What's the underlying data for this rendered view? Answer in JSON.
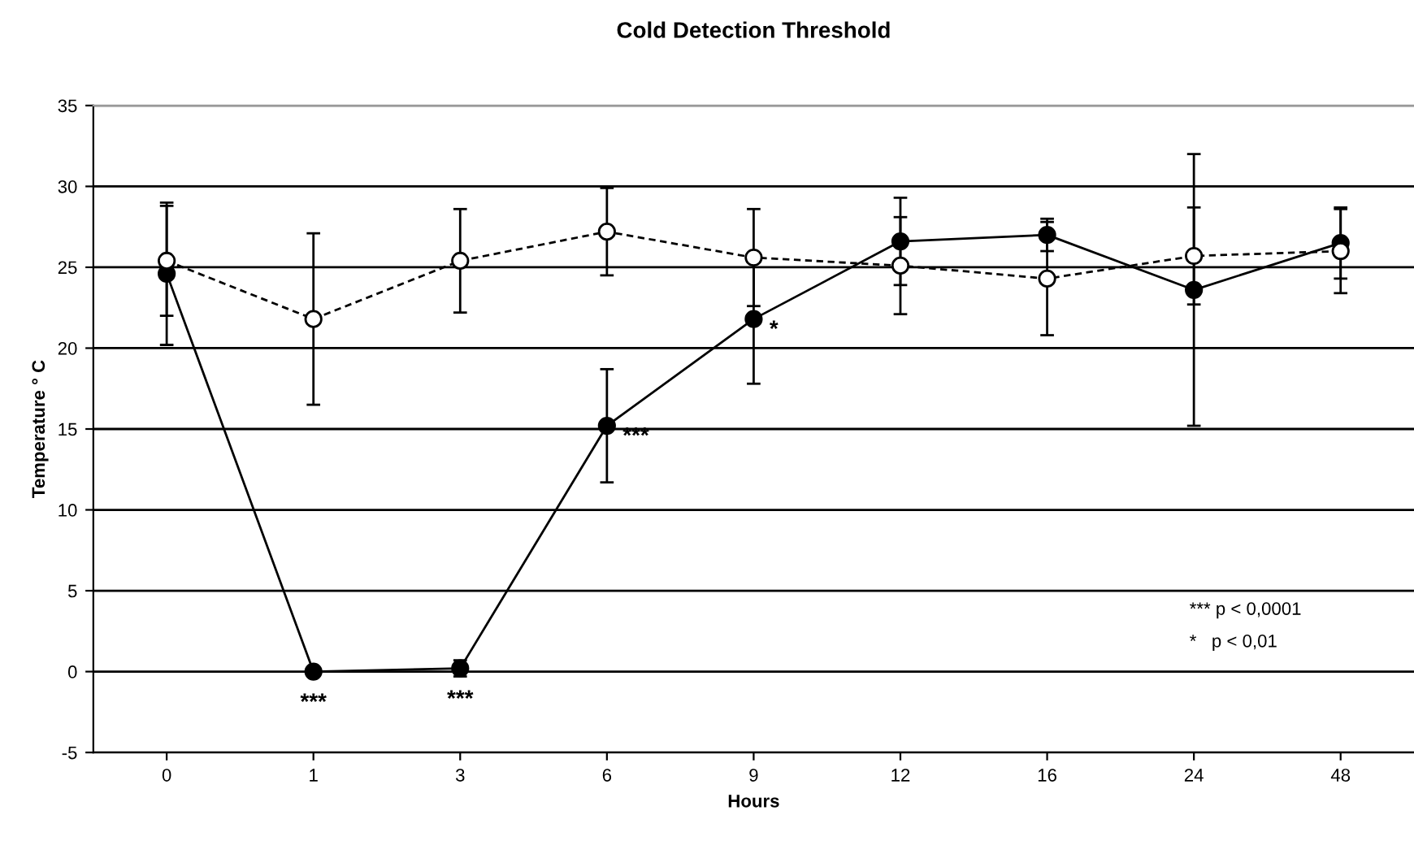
{
  "chart_data": {
    "type": "line",
    "title": "Cold Detection Threshold",
    "xlabel": "Hours",
    "ylabel": "Temperature ° C",
    "categories": [
      "0",
      "1",
      "3",
      "6",
      "9",
      "12",
      "16",
      "24",
      "48"
    ],
    "series": [
      {
        "color": "#000000",
        "line_style": "solid",
        "values": [
          24.6,
          0,
          0.2,
          15.2,
          21.8,
          26.6,
          27.0,
          23.6,
          26.5
        ],
        "errors": [
          4.4,
          null,
          0.5,
          3.5,
          4.0,
          2.7,
          1.0,
          8.4,
          2.2
        ]
      },
      {
        "color": "#ffffff",
        "line_style": "dashed",
        "values": [
          25.4,
          21.8,
          25.4,
          27.2,
          25.6,
          25.1,
          24.3,
          25.7,
          26.0
        ],
        "errors": [
          3.4,
          5.3,
          3.2,
          2.7,
          3.0,
          3.0,
          3.5,
          3.0,
          2.6
        ]
      }
    ],
    "marker": "circle",
    "ylim": [
      -5,
      35
    ],
    "yticks": [
      -5,
      0,
      5,
      10,
      15,
      20,
      25,
      30,
      35
    ],
    "grid": "y",
    "legend": false,
    "annotations": [
      {
        "text": "***",
        "x": "1",
        "y": 0
      },
      {
        "text": "***",
        "x": "3",
        "y": 0.2
      },
      {
        "text": "***",
        "x": "6",
        "y": 15.2
      },
      {
        "text": "*",
        "x": "9",
        "y": 21.8
      },
      "*** p < 0,0001",
      "*   p < 0,01"
    ]
  }
}
